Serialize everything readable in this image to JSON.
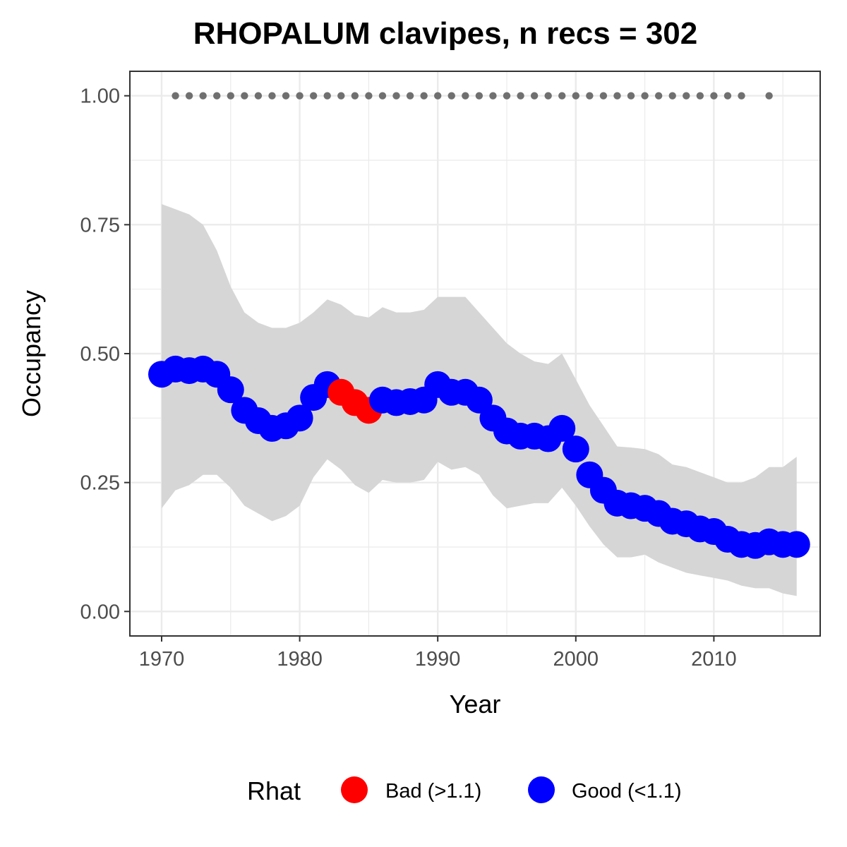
{
  "chart_data": {
    "type": "line",
    "title": "RHOPALUM clavipes, n recs = 302",
    "xlabel": "Year",
    "ylabel": "Occupancy",
    "xlim": [
      1967.7,
      2017.7
    ],
    "ylim": [
      -0.0475,
      1.0475
    ],
    "x_ticks": [
      1970,
      1980,
      1990,
      2000,
      2010
    ],
    "x_tick_labels": [
      "1970",
      "1980",
      "1990",
      "2000",
      "2010"
    ],
    "y_ticks": [
      0,
      0.25,
      0.5,
      0.75,
      1.0
    ],
    "y_tick_labels": [
      "0.00",
      "0.25",
      "0.50",
      "0.75",
      "1.00"
    ],
    "grid": true,
    "legend": {
      "title": "Rhat",
      "position": "bottom",
      "entries": [
        {
          "label": "Bad (>1.1)",
          "color": "#ff0000"
        },
        {
          "label": "Good (<1.1)",
          "color": "#0000ff"
        }
      ]
    },
    "colors": {
      "bad": "#ff0000",
      "good": "#0000ff",
      "ribbon": "#d6d6d6",
      "records": "#707070"
    },
    "x": [
      1970,
      1971,
      1972,
      1973,
      1974,
      1975,
      1976,
      1977,
      1978,
      1979,
      1980,
      1981,
      1982,
      1983,
      1984,
      1985,
      1986,
      1987,
      1988,
      1989,
      1990,
      1991,
      1992,
      1993,
      1994,
      1995,
      1996,
      1997,
      1998,
      1999,
      2000,
      2001,
      2002,
      2003,
      2004,
      2005,
      2006,
      2007,
      2008,
      2009,
      2010,
      2011,
      2012,
      2013,
      2014,
      2015,
      2016
    ],
    "series": [
      {
        "name": "Occupancy (mean)",
        "values": [
          0.46,
          0.47,
          0.467,
          0.47,
          0.46,
          0.43,
          0.39,
          0.37,
          0.355,
          0.36,
          0.375,
          0.415,
          0.44,
          0.425,
          0.405,
          0.39,
          0.41,
          0.405,
          0.407,
          0.41,
          0.44,
          0.425,
          0.425,
          0.41,
          0.375,
          0.35,
          0.34,
          0.34,
          0.335,
          0.355,
          0.315,
          0.265,
          0.235,
          0.21,
          0.205,
          0.2,
          0.19,
          0.175,
          0.17,
          0.16,
          0.155,
          0.14,
          0.13,
          0.128,
          0.135,
          0.13,
          0.13
        ],
        "rhat": [
          "Good",
          "Good",
          "Good",
          "Good",
          "Good",
          "Good",
          "Good",
          "Good",
          "Good",
          "Good",
          "Good",
          "Good",
          "Good",
          "Bad",
          "Bad",
          "Bad",
          "Good",
          "Good",
          "Good",
          "Good",
          "Good",
          "Good",
          "Good",
          "Good",
          "Good",
          "Good",
          "Good",
          "Good",
          "Good",
          "Good",
          "Good",
          "Good",
          "Good",
          "Good",
          "Good",
          "Good",
          "Good",
          "Good",
          "Good",
          "Good",
          "Good",
          "Good",
          "Good",
          "Good",
          "Good",
          "Good",
          "Good"
        ]
      },
      {
        "name": "Upper CI",
        "values": [
          0.79,
          0.78,
          0.77,
          0.75,
          0.7,
          0.63,
          0.58,
          0.56,
          0.55,
          0.55,
          0.56,
          0.58,
          0.605,
          0.595,
          0.575,
          0.57,
          0.59,
          0.58,
          0.58,
          0.585,
          0.61,
          0.61,
          0.61,
          0.58,
          0.55,
          0.52,
          0.5,
          0.485,
          0.48,
          0.5,
          0.45,
          0.4,
          0.36,
          0.32,
          0.318,
          0.315,
          0.305,
          0.285,
          0.28,
          0.27,
          0.26,
          0.25,
          0.25,
          0.26,
          0.28,
          0.28,
          0.3
        ]
      },
      {
        "name": "Lower CI",
        "values": [
          0.2,
          0.235,
          0.245,
          0.265,
          0.265,
          0.24,
          0.205,
          0.19,
          0.175,
          0.185,
          0.205,
          0.26,
          0.295,
          0.275,
          0.245,
          0.23,
          0.255,
          0.25,
          0.25,
          0.255,
          0.29,
          0.275,
          0.28,
          0.265,
          0.225,
          0.2,
          0.205,
          0.21,
          0.21,
          0.24,
          0.205,
          0.165,
          0.13,
          0.105,
          0.105,
          0.11,
          0.095,
          0.085,
          0.075,
          0.07,
          0.065,
          0.06,
          0.05,
          0.045,
          0.045,
          0.035,
          0.03
        ]
      }
    ],
    "record_years": [
      1971,
      1972,
      1973,
      1974,
      1975,
      1976,
      1977,
      1978,
      1979,
      1980,
      1981,
      1982,
      1983,
      1984,
      1985,
      1986,
      1987,
      1988,
      1989,
      1990,
      1991,
      1992,
      1993,
      1994,
      1995,
      1996,
      1997,
      1998,
      1999,
      2000,
      2001,
      2002,
      2003,
      2004,
      2005,
      2006,
      2007,
      2008,
      2009,
      2010,
      2011,
      2012,
      2014
    ],
    "record_value": 1.0
  }
}
